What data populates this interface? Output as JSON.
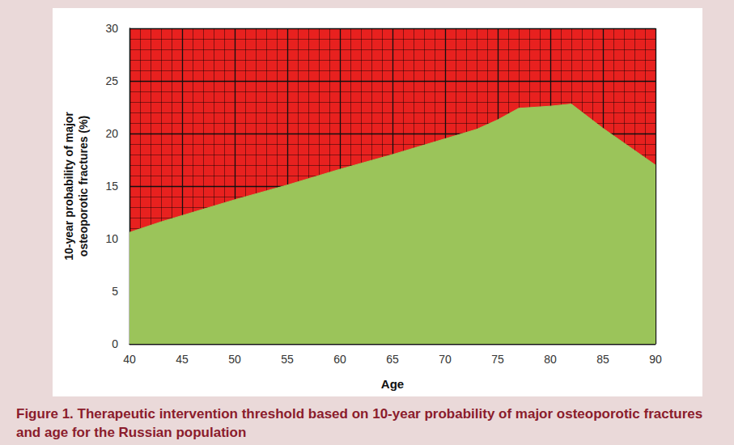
{
  "chart_data": {
    "type": "area",
    "title": "Figure 1. Therapeutic intervention threshold based on 10-year probability of major osteoporotic fractures and age for the Russian population",
    "xlabel": "Age",
    "ylabel": "10-year probability of major\nosteoporotic fractures (%)",
    "x": [
      40,
      43,
      45,
      50,
      55,
      60,
      65,
      70,
      73,
      75,
      77,
      80,
      82,
      85,
      90
    ],
    "values": [
      10.6,
      11.6,
      12.2,
      13.7,
      15.1,
      16.6,
      18.0,
      19.5,
      20.4,
      21.3,
      22.4,
      22.6,
      22.8,
      20.5,
      17.0
    ],
    "colors": [
      "#9bc45a",
      "#e8211f"
    ],
    "xlim": [
      40,
      90
    ],
    "xticks": [
      40,
      45,
      50,
      55,
      60,
      65,
      70,
      75,
      80,
      85,
      90
    ],
    "ylim": [
      0,
      30
    ],
    "yticks": [
      0,
      5,
      10,
      15,
      20,
      25,
      30
    ],
    "grid": true
  }
}
